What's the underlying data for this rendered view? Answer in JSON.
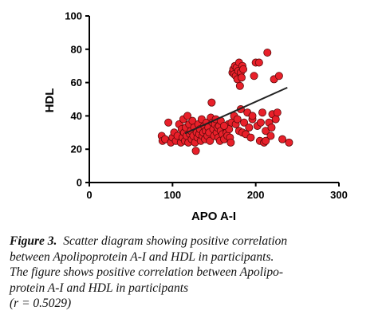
{
  "chart_data": {
    "type": "scatter",
    "title": "",
    "xlabel": "APO A-I",
    "ylabel": "HDL",
    "xlim": [
      0,
      300
    ],
    "ylim": [
      0,
      100
    ],
    "xticks": [
      "0",
      "100",
      "200",
      "300"
    ],
    "yticks": [
      "0",
      "20",
      "40",
      "60",
      "80",
      "100"
    ],
    "grid": false,
    "legend": "none",
    "point_color": "#e8202a",
    "point_edge_color": "#5a0a0a",
    "line_color": "#222222",
    "trendline": {
      "x": [
        115,
        238
      ],
      "y": [
        29.5,
        57
      ]
    },
    "points": [
      {
        "x": 87,
        "y": 28
      },
      {
        "x": 88,
        "y": 25
      },
      {
        "x": 91,
        "y": 26
      },
      {
        "x": 95,
        "y": 36
      },
      {
        "x": 98,
        "y": 24
      },
      {
        "x": 100,
        "y": 27
      },
      {
        "x": 102,
        "y": 30
      },
      {
        "x": 104,
        "y": 25
      },
      {
        "x": 106,
        "y": 28
      },
      {
        "x": 108,
        "y": 35
      },
      {
        "x": 110,
        "y": 24
      },
      {
        "x": 111,
        "y": 32
      },
      {
        "x": 112,
        "y": 27
      },
      {
        "x": 113,
        "y": 38
      },
      {
        "x": 114,
        "y": 30
      },
      {
        "x": 115,
        "y": 25
      },
      {
        "x": 116,
        "y": 33
      },
      {
        "x": 117,
        "y": 28
      },
      {
        "x": 118,
        "y": 40
      },
      {
        "x": 119,
        "y": 24
      },
      {
        "x": 120,
        "y": 35
      },
      {
        "x": 121,
        "y": 29
      },
      {
        "x": 122,
        "y": 31
      },
      {
        "x": 123,
        "y": 26
      },
      {
        "x": 124,
        "y": 37
      },
      {
        "x": 125,
        "y": 28
      },
      {
        "x": 126,
        "y": 33
      },
      {
        "x": 127,
        "y": 24
      },
      {
        "x": 128,
        "y": 19
      },
      {
        "x": 129,
        "y": 30
      },
      {
        "x": 130,
        "y": 27
      },
      {
        "x": 131,
        "y": 35
      },
      {
        "x": 132,
        "y": 29
      },
      {
        "x": 133,
        "y": 32
      },
      {
        "x": 134,
        "y": 25
      },
      {
        "x": 135,
        "y": 38
      },
      {
        "x": 136,
        "y": 28
      },
      {
        "x": 137,
        "y": 30
      },
      {
        "x": 138,
        "y": 34
      },
      {
        "x": 139,
        "y": 26
      },
      {
        "x": 140,
        "y": 31
      },
      {
        "x": 141,
        "y": 36
      },
      {
        "x": 142,
        "y": 28
      },
      {
        "x": 143,
        "y": 33
      },
      {
        "x": 144,
        "y": 30
      },
      {
        "x": 145,
        "y": 25
      },
      {
        "x": 146,
        "y": 39
      },
      {
        "x": 147,
        "y": 48
      },
      {
        "x": 148,
        "y": 36
      },
      {
        "x": 149,
        "y": 32
      },
      {
        "x": 150,
        "y": 28
      },
      {
        "x": 151,
        "y": 35
      },
      {
        "x": 152,
        "y": 38
      },
      {
        "x": 153,
        "y": 30
      },
      {
        "x": 154,
        "y": 33
      },
      {
        "x": 155,
        "y": 27
      },
      {
        "x": 156,
        "y": 34
      },
      {
        "x": 157,
        "y": 25
      },
      {
        "x": 158,
        "y": 31
      },
      {
        "x": 160,
        "y": 29
      },
      {
        "x": 162,
        "y": 26
      },
      {
        "x": 164,
        "y": 33
      },
      {
        "x": 165,
        "y": 30
      },
      {
        "x": 166,
        "y": 28
      },
      {
        "x": 167,
        "y": 35
      },
      {
        "x": 168,
        "y": 32
      },
      {
        "x": 169,
        "y": 27
      },
      {
        "x": 170,
        "y": 24
      },
      {
        "x": 171,
        "y": 36
      },
      {
        "x": 172,
        "y": 66
      },
      {
        "x": 173,
        "y": 68
      },
      {
        "x": 174,
        "y": 65
      },
      {
        "x": 175,
        "y": 70
      },
      {
        "x": 176,
        "y": 64
      },
      {
        "x": 177,
        "y": 69
      },
      {
        "x": 178,
        "y": 62
      },
      {
        "x": 179,
        "y": 67
      },
      {
        "x": 180,
        "y": 72
      },
      {
        "x": 181,
        "y": 58
      },
      {
        "x": 182,
        "y": 66
      },
      {
        "x": 183,
        "y": 63
      },
      {
        "x": 184,
        "y": 70
      },
      {
        "x": 185,
        "y": 68
      },
      {
        "x": 174,
        "y": 40
      },
      {
        "x": 176,
        "y": 35
      },
      {
        "x": 178,
        "y": 38
      },
      {
        "x": 180,
        "y": 31
      },
      {
        "x": 182,
        "y": 44
      },
      {
        "x": 184,
        "y": 30
      },
      {
        "x": 186,
        "y": 36
      },
      {
        "x": 188,
        "y": 29
      },
      {
        "x": 190,
        "y": 42
      },
      {
        "x": 192,
        "y": 33
      },
      {
        "x": 194,
        "y": 27
      },
      {
        "x": 196,
        "y": 38
      },
      {
        "x": 198,
        "y": 64
      },
      {
        "x": 200,
        "y": 72
      },
      {
        "x": 202,
        "y": 34
      },
      {
        "x": 204,
        "y": 72
      },
      {
        "x": 205,
        "y": 25
      },
      {
        "x": 206,
        "y": 36
      },
      {
        "x": 208,
        "y": 42
      },
      {
        "x": 210,
        "y": 24
      },
      {
        "x": 212,
        "y": 31
      },
      {
        "x": 214,
        "y": 78
      },
      {
        "x": 216,
        "y": 36
      },
      {
        "x": 218,
        "y": 28
      },
      {
        "x": 220,
        "y": 41
      },
      {
        "x": 222,
        "y": 62
      },
      {
        "x": 224,
        "y": 38
      },
      {
        "x": 226,
        "y": 42
      },
      {
        "x": 228,
        "y": 64
      },
      {
        "x": 232,
        "y": 26
      },
      {
        "x": 240,
        "y": 24
      },
      {
        "x": 158,
        "y": 37
      },
      {
        "x": 162,
        "y": 34
      },
      {
        "x": 196,
        "y": 40
      },
      {
        "x": 212,
        "y": 25
      },
      {
        "x": 219,
        "y": 33
      }
    ]
  },
  "caption": {
    "label": "Figure 3.",
    "line1": "Scatter diagram showing positive correlation",
    "line2": "between Apolipoprotein A-I and HDL in participants.",
    "line3": "The figure shows positive correlation between Apolipo-",
    "line4": "protein A-I and HDL in participants",
    "line5": "(r = 0.5029)"
  }
}
